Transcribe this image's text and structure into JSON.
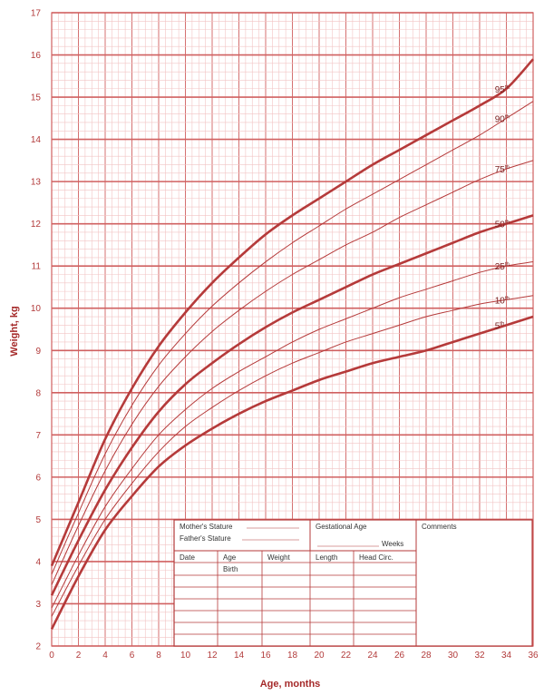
{
  "chart_data": {
    "type": "line",
    "title": "",
    "xlabel": "Age, months",
    "ylabel": "Weight, kg",
    "xlim": [
      0,
      36
    ],
    "ylim": [
      2,
      17
    ],
    "x_ticks": [
      0,
      2,
      4,
      6,
      8,
      10,
      12,
      14,
      16,
      18,
      20,
      22,
      24,
      26,
      28,
      30,
      32,
      34,
      36
    ],
    "y_ticks": [
      2,
      3,
      4,
      5,
      6,
      7,
      8,
      9,
      10,
      11,
      12,
      13,
      14,
      15,
      16,
      17
    ],
    "grid": true,
    "x": [
      0,
      2,
      4,
      6,
      8,
      10,
      12,
      14,
      16,
      18,
      20,
      22,
      24,
      26,
      28,
      30,
      32,
      34,
      36
    ],
    "series": [
      {
        "name": "95",
        "label": "95th",
        "bold": true,
        "values": [
          3.9,
          5.4,
          6.9,
          8.1,
          9.1,
          9.9,
          10.6,
          11.2,
          11.75,
          12.2,
          12.6,
          13.0,
          13.4,
          13.75,
          14.1,
          14.45,
          14.8,
          15.2,
          15.9
        ]
      },
      {
        "name": "90",
        "label": "90th",
        "bold": false,
        "values": [
          3.7,
          5.15,
          6.55,
          7.7,
          8.65,
          9.4,
          10.05,
          10.6,
          11.1,
          11.55,
          11.95,
          12.35,
          12.7,
          13.05,
          13.4,
          13.75,
          14.1,
          14.5,
          14.9
        ]
      },
      {
        "name": "75",
        "label": "75th",
        "bold": false,
        "values": [
          3.45,
          4.85,
          6.15,
          7.25,
          8.15,
          8.85,
          9.45,
          9.95,
          10.4,
          10.8,
          11.15,
          11.5,
          11.8,
          12.15,
          12.45,
          12.75,
          13.05,
          13.3,
          13.5
        ]
      },
      {
        "name": "50",
        "label": "50th",
        "bold": true,
        "values": [
          3.2,
          4.5,
          5.7,
          6.7,
          7.55,
          8.2,
          8.7,
          9.15,
          9.55,
          9.9,
          10.2,
          10.5,
          10.8,
          11.05,
          11.3,
          11.55,
          11.8,
          12.0,
          12.2
        ]
      },
      {
        "name": "25",
        "label": "25th",
        "bold": false,
        "values": [
          2.9,
          4.15,
          5.3,
          6.2,
          7.0,
          7.6,
          8.1,
          8.5,
          8.85,
          9.2,
          9.5,
          9.75,
          10.0,
          10.25,
          10.45,
          10.65,
          10.85,
          11.0,
          11.1
        ]
      },
      {
        "name": "10",
        "label": "10th",
        "bold": false,
        "values": [
          2.7,
          3.9,
          5.0,
          5.85,
          6.6,
          7.2,
          7.65,
          8.05,
          8.4,
          8.7,
          8.95,
          9.2,
          9.4,
          9.6,
          9.8,
          9.95,
          10.1,
          10.2,
          10.3
        ]
      },
      {
        "name": "5",
        "label": "5th",
        "bold": true,
        "values": [
          2.4,
          3.65,
          4.75,
          5.55,
          6.25,
          6.75,
          7.15,
          7.5,
          7.8,
          8.05,
          8.3,
          8.5,
          8.7,
          8.85,
          9.0,
          9.2,
          9.4,
          9.6,
          9.8
        ]
      }
    ]
  },
  "record_form": {
    "mothers_stature": "Mother's Stature",
    "fathers_stature": "Father's Stature",
    "gestational_age": "Gestational Age",
    "weeks": "Weeks",
    "comments": "Comments",
    "columns": [
      "Date",
      "Age",
      "Weight",
      "Length",
      "Head Circ."
    ],
    "birth": "Birth"
  },
  "colors": {
    "grid_minor": "#f2c4c4",
    "grid_major": "#d06060",
    "curve": "#b53a3a",
    "text": "#b23a3a"
  }
}
